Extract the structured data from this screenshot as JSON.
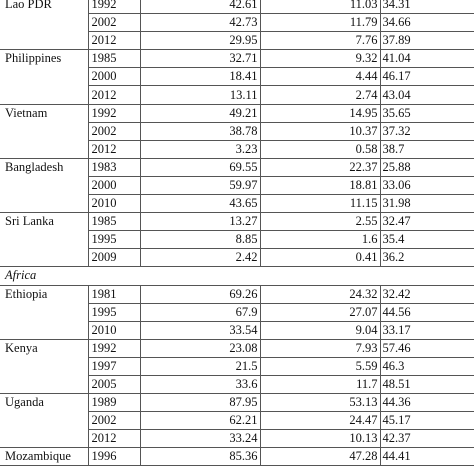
{
  "table": {
    "rows": [
      {
        "type": "data",
        "country": "Lao PDR",
        "year": "1992",
        "v1": "42.61",
        "v2": "11.03",
        "v3": "34.31"
      },
      {
        "type": "data",
        "country": "",
        "year": "2002",
        "v1": "42.73",
        "v2": "11.79",
        "v3": "34.66"
      },
      {
        "type": "data",
        "country": "",
        "year": "2012",
        "v1": "29.95",
        "v2": "7.76",
        "v3": "37.89"
      },
      {
        "type": "data",
        "country": "Philippines",
        "year": "1985",
        "v1": "32.71",
        "v2": "9.32",
        "v3": "41.04"
      },
      {
        "type": "data",
        "country": "",
        "year": "2000",
        "v1": "18.41",
        "v2": "4.44",
        "v3": "46.17"
      },
      {
        "type": "data",
        "country": "",
        "year": "2012",
        "v1": "13.11",
        "v2": "2.74",
        "v3": "43.04"
      },
      {
        "type": "data",
        "country": "Vietnam",
        "year": "1992",
        "v1": "49.21",
        "v2": "14.95",
        "v3": "35.65"
      },
      {
        "type": "data",
        "country": "",
        "year": "2002",
        "v1": "38.78",
        "v2": "10.37",
        "v3": "37.32"
      },
      {
        "type": "data",
        "country": "",
        "year": "2012",
        "v1": "3.23",
        "v2": "0.58",
        "v3": "38.7"
      },
      {
        "type": "data",
        "country": "Bangladesh",
        "year": "1983",
        "v1": "69.55",
        "v2": "22.37",
        "v3": "25.88"
      },
      {
        "type": "data",
        "country": "",
        "year": "2000",
        "v1": "59.97",
        "v2": "18.81",
        "v3": "33.06"
      },
      {
        "type": "data",
        "country": "",
        "year": "2010",
        "v1": "43.65",
        "v2": "11.15",
        "v3": "31.98"
      },
      {
        "type": "data",
        "country": "Sri Lanka",
        "year": "1985",
        "v1": "13.27",
        "v2": "2.55",
        "v3": "32.47"
      },
      {
        "type": "data",
        "country": "",
        "year": "1995",
        "v1": "8.85",
        "v2": "1.6",
        "v3": "35.4"
      },
      {
        "type": "data",
        "country": "",
        "year": "2009",
        "v1": "2.42",
        "v2": "0.41",
        "v3": "36.2"
      },
      {
        "type": "region",
        "label": "Africa"
      },
      {
        "type": "data",
        "country": "Ethiopia",
        "year": "1981",
        "v1": "69.26",
        "v2": "24.32",
        "v3": "32.42"
      },
      {
        "type": "data",
        "country": "",
        "year": "1995",
        "v1": "67.9",
        "v2": "27.07",
        "v3": "44.56"
      },
      {
        "type": "data",
        "country": "",
        "year": "2010",
        "v1": "33.54",
        "v2": "9.04",
        "v3": "33.17"
      },
      {
        "type": "data",
        "country": "Kenya",
        "year": "1992",
        "v1": "23.08",
        "v2": "7.93",
        "v3": "57.46"
      },
      {
        "type": "data",
        "country": "",
        "year": "1997",
        "v1": "21.5",
        "v2": "5.59",
        "v3": "46.3"
      },
      {
        "type": "data",
        "country": "",
        "year": "2005",
        "v1": "33.6",
        "v2": "11.7",
        "v3": "48.51"
      },
      {
        "type": "data",
        "country": "Uganda",
        "year": "1989",
        "v1": "87.95",
        "v2": "53.13",
        "v3": "44.36"
      },
      {
        "type": "data",
        "country": "",
        "year": "2002",
        "v1": "62.21",
        "v2": "24.47",
        "v3": "45.17"
      },
      {
        "type": "data",
        "country": "",
        "year": "2012",
        "v1": "33.24",
        "v2": "10.13",
        "v3": "42.37"
      },
      {
        "type": "data",
        "country": "Mozambique",
        "year": "1996",
        "v1": "85.36",
        "v2": "47.28",
        "v3": "44.41"
      }
    ]
  }
}
